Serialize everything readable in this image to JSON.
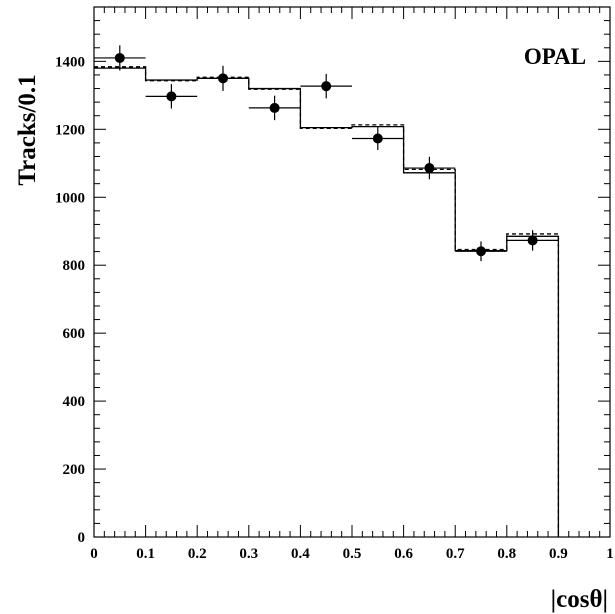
{
  "chart_data": {
    "type": "histogram",
    "annotation": "OPAL",
    "ylabel": "Tracks/0.1",
    "xlabel": "|cosθ|",
    "xlim": [
      0,
      1
    ],
    "ylim": [
      0,
      1560
    ],
    "xticks": [
      0,
      0.1,
      0.2,
      0.3,
      0.4,
      0.5,
      0.6,
      0.7,
      0.8,
      0.9,
      1
    ],
    "xtick_labels": [
      "0",
      "0.1",
      "0.2",
      "0.3",
      "0.4",
      "0.5",
      "0.6",
      "0.7",
      "0.8",
      "0.9",
      "1"
    ],
    "yticks": [
      0,
      200,
      400,
      600,
      800,
      1000,
      1200,
      1400
    ],
    "ytick_labels": [
      "0",
      "200",
      "400",
      "600",
      "800",
      "1000",
      "1200",
      "1400"
    ],
    "bin_edges": [
      0,
      0.1,
      0.2,
      0.3,
      0.4,
      0.5,
      0.6,
      0.7,
      0.8,
      0.9
    ],
    "series": [
      {
        "style": "solid-histogram",
        "values": [
          1380,
          1345,
          1350,
          1320,
          1205,
          1208,
          1072,
          843,
          885
        ]
      },
      {
        "style": "dashed-histogram",
        "values": [
          1384,
          1343,
          1353,
          1318,
          1203,
          1213,
          1082,
          846,
          892
        ]
      },
      {
        "style": "points-with-errors",
        "x": [
          0.05,
          0.15,
          0.25,
          0.35,
          0.45,
          0.55,
          0.65,
          0.75,
          0.85
        ],
        "y": [
          1410,
          1297,
          1350,
          1263,
          1327,
          1173,
          1086,
          841,
          873
        ],
        "yerr": [
          37,
          36,
          37,
          36,
          36,
          34,
          33,
          29,
          30
        ],
        "xerr": [
          0.05,
          0.05,
          0.05,
          0.05,
          0.05,
          0.05,
          0.05,
          0.05,
          0.05
        ]
      }
    ]
  }
}
